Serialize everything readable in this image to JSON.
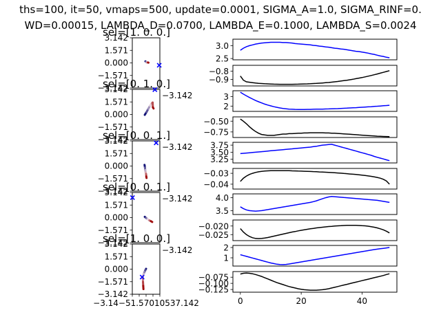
{
  "figure": {
    "title_line1": "ths=100, it=50, vmaps=500, update=0.0001, SIGMA_A=1.0, SIGMA_RINF=0.",
    "title_line2": "WD=0.00015, LAMBDA_D=0.0700, LAMBDA_E=0.1000, LAMBDA_S=0.0024"
  },
  "chart_data": {
    "scatter_panels": [
      {
        "title": "sel=[1. 0. 0.]",
        "offaxis_label": "",
        "cross": [
          3.0,
          -0.3
        ],
        "trail": [
          [
            -0.15,
            0.2
          ],
          [
            0.0,
            0.12
          ],
          [
            0.15,
            0.06
          ],
          [
            0.3,
            0.05
          ],
          [
            0.45,
            0.05
          ],
          [
            0.55,
            0.03
          ]
        ]
      },
      {
        "title": "sel=[0. 1. 0.]",
        "offaxis_label": "−3.142",
        "cross": [
          2.0,
          3.1
        ],
        "trail": [
          [
            -0.3,
            -0.05
          ],
          [
            0.1,
            0.3
          ],
          [
            0.5,
            0.7
          ],
          [
            0.9,
            1.1
          ],
          [
            1.3,
            1.4
          ],
          [
            1.5,
            1.5
          ],
          [
            1.55,
            0.9
          ],
          [
            1.7,
            0.75
          ]
        ]
      },
      {
        "title": "sel=[0. 0. 1.]",
        "offaxis_label": "−3.142",
        "cross": [
          2.3,
          2.9
        ],
        "trail": [
          [
            -0.35,
            0.15
          ],
          [
            -0.25,
            -0.2
          ],
          [
            -0.2,
            -0.5
          ],
          [
            -0.1,
            -0.8
          ],
          [
            0.0,
            -1.0
          ],
          [
            0.05,
            -1.3
          ],
          [
            0.1,
            -1.5
          ]
        ]
      },
      {
        "title": "sel=[0. 0. 1.]",
        "offaxis_label": "−3.142",
        "cross": [
          -3.1,
          2.5
        ],
        "trail": [
          [
            -0.3,
            0.1
          ],
          [
            0.0,
            -0.05
          ],
          [
            0.35,
            -0.2
          ],
          [
            0.75,
            -0.35
          ],
          [
            1.1,
            -0.45
          ],
          [
            1.4,
            -0.55
          ]
        ]
      },
      {
        "title": "sel=[1. 0. 0.]",
        "offaxis_label": "−3.142",
        "cross": [
          -0.9,
          -1.0
        ],
        "trail": [
          [
            0.0,
            0.05
          ],
          [
            -0.15,
            -0.1
          ],
          [
            -0.35,
            -0.35
          ],
          [
            -0.55,
            -0.6
          ],
          [
            -0.7,
            -0.85
          ],
          [
            -0.75,
            -1.05
          ],
          [
            -0.7,
            -1.6
          ],
          [
            -0.65,
            -2.1
          ],
          [
            -0.6,
            -2.5
          ]
        ]
      }
    ],
    "scatter_axes": {
      "xlim": [
        -3.142,
        3.142
      ],
      "ylim": [
        -3.142,
        3.142
      ],
      "yticks": [
        "3.142",
        "1.571",
        "0.000",
        "−1.571",
        "−3.142"
      ],
      "xticks_overlapped": "−3.14−51.57010537.142",
      "cross_color": "#0000ff"
    },
    "line_panels": [
      {
        "color": "#0000ff",
        "ylim": [
          2.45,
          3.25
        ],
        "ticks": [
          2.5,
          3.0
        ],
        "tick_labels": [
          "2.5",
          "3.0"
        ],
        "y": [
          2.82,
          2.9,
          2.96,
          3.0,
          3.03,
          3.06,
          3.08,
          3.1,
          3.11,
          3.12,
          3.13,
          3.13,
          3.13,
          3.13,
          3.12,
          3.12,
          3.11,
          3.1,
          3.08,
          3.07,
          3.06,
          3.05,
          3.04,
          3.03,
          3.01,
          3.0,
          2.98,
          2.97,
          2.95,
          2.94,
          2.92,
          2.9,
          2.89,
          2.87,
          2.86,
          2.84,
          2.82,
          2.8,
          2.78,
          2.77,
          2.75,
          2.73,
          2.71,
          2.68,
          2.66,
          2.63,
          2.6,
          2.58,
          2.55,
          2.53
        ]
      },
      {
        "color": "#000000",
        "ylim": [
          -0.98,
          -0.73
        ],
        "ticks": [
          -0.8,
          -0.9
        ],
        "tick_labels": [
          "−0.8",
          "−0.9"
        ],
        "y": [
          -0.86,
          -0.91,
          -0.93,
          -0.935,
          -0.94,
          -0.945,
          -0.948,
          -0.951,
          -0.953,
          -0.955,
          -0.957,
          -0.958,
          -0.959,
          -0.96,
          -0.96,
          -0.96,
          -0.96,
          -0.96,
          -0.959,
          -0.958,
          -0.957,
          -0.956,
          -0.955,
          -0.953,
          -0.951,
          -0.949,
          -0.947,
          -0.944,
          -0.941,
          -0.938,
          -0.934,
          -0.93,
          -0.926,
          -0.921,
          -0.916,
          -0.911,
          -0.905,
          -0.899,
          -0.892,
          -0.885,
          -0.878,
          -0.87,
          -0.862,
          -0.853,
          -0.844,
          -0.835,
          -0.825,
          -0.815,
          -0.805,
          -0.795
        ]
      },
      {
        "color": "#0000ff",
        "ylim": [
          1.45,
          3.6
        ],
        "ticks": [
          3,
          2
        ],
        "tick_labels": [
          "3",
          "2"
        ],
        "y": [
          3.45,
          3.25,
          3.07,
          2.9,
          2.74,
          2.58,
          2.45,
          2.33,
          2.21,
          2.11,
          2.02,
          1.94,
          1.87,
          1.81,
          1.76,
          1.72,
          1.69,
          1.67,
          1.66,
          1.65,
          1.65,
          1.65,
          1.66,
          1.66,
          1.67,
          1.68,
          1.68,
          1.69,
          1.7,
          1.71,
          1.72,
          1.73,
          1.74,
          1.76,
          1.77,
          1.79,
          1.81,
          1.82,
          1.84,
          1.86,
          1.88,
          1.9,
          1.92,
          1.94,
          1.97,
          1.99,
          2.01,
          2.04,
          2.06,
          2.09
        ]
      },
      {
        "color": "#000000",
        "ylim": [
          -0.88,
          -0.4
        ],
        "ticks": [
          -0.5,
          -0.75
        ],
        "tick_labels": [
          "−0.50",
          "−0.75"
        ],
        "y": [
          -0.45,
          -0.5,
          -0.56,
          -0.63,
          -0.69,
          -0.74,
          -0.78,
          -0.81,
          -0.82,
          -0.83,
          -0.83,
          -0.83,
          -0.82,
          -0.81,
          -0.8,
          -0.8,
          -0.79,
          -0.79,
          -0.785,
          -0.78,
          -0.78,
          -0.775,
          -0.775,
          -0.77,
          -0.77,
          -0.77,
          -0.77,
          -0.77,
          -0.775,
          -0.775,
          -0.78,
          -0.78,
          -0.785,
          -0.79,
          -0.795,
          -0.8,
          -0.805,
          -0.81,
          -0.815,
          -0.82,
          -0.825,
          -0.83,
          -0.835,
          -0.84,
          -0.845,
          -0.85,
          -0.853,
          -0.856,
          -0.858,
          -0.86
        ]
      },
      {
        "color": "#0000ff",
        "ylim": [
          3.12,
          3.85
        ],
        "ticks": [
          3.75,
          3.5,
          3.25
        ],
        "tick_labels": [
          "3.75",
          "3.50",
          "3.25"
        ],
        "y": [
          3.45,
          3.46,
          3.47,
          3.48,
          3.49,
          3.5,
          3.51,
          3.52,
          3.53,
          3.54,
          3.55,
          3.56,
          3.57,
          3.58,
          3.59,
          3.6,
          3.61,
          3.62,
          3.63,
          3.64,
          3.65,
          3.66,
          3.67,
          3.68,
          3.7,
          3.71,
          3.73,
          3.75,
          3.76,
          3.77,
          3.78,
          3.75,
          3.72,
          3.69,
          3.66,
          3.63,
          3.6,
          3.57,
          3.54,
          3.51,
          3.48,
          3.45,
          3.42,
          3.39,
          3.35,
          3.32,
          3.29,
          3.26,
          3.23,
          3.2
        ]
      },
      {
        "color": "#000000",
        "ylim": [
          -0.0445,
          -0.0255
        ],
        "ticks": [
          -0.03,
          -0.04
        ],
        "tick_labels": [
          "−0.03",
          "−0.04"
        ],
        "y": [
          -0.0375,
          -0.0345,
          -0.0325,
          -0.031,
          -0.03,
          -0.0292,
          -0.0286,
          -0.0282,
          -0.0279,
          -0.0277,
          -0.0276,
          -0.0275,
          -0.0275,
          -0.0275,
          -0.0275,
          -0.0276,
          -0.0276,
          -0.0277,
          -0.0278,
          -0.0279,
          -0.028,
          -0.0281,
          -0.0282,
          -0.0283,
          -0.0284,
          -0.0285,
          -0.0287,
          -0.0288,
          -0.029,
          -0.0291,
          -0.0293,
          -0.0295,
          -0.0297,
          -0.0299,
          -0.0301,
          -0.0303,
          -0.0306,
          -0.0308,
          -0.0311,
          -0.0314,
          -0.0317,
          -0.032,
          -0.0324,
          -0.0328,
          -0.0333,
          -0.0338,
          -0.0345,
          -0.0355,
          -0.037,
          -0.04
        ]
      },
      {
        "color": "#0000ff",
        "ylim": [
          3.35,
          4.15
        ],
        "ticks": [
          4.0,
          3.5
        ],
        "tick_labels": [
          "4.0",
          "3.5"
        ],
        "y": [
          3.65,
          3.58,
          3.53,
          3.5,
          3.49,
          3.48,
          3.49,
          3.5,
          3.52,
          3.54,
          3.56,
          3.58,
          3.6,
          3.62,
          3.64,
          3.66,
          3.68,
          3.7,
          3.72,
          3.74,
          3.76,
          3.78,
          3.8,
          3.82,
          3.85,
          3.88,
          3.92,
          3.96,
          4.0,
          4.03,
          4.05,
          4.04,
          4.03,
          4.02,
          4.01,
          4.0,
          3.99,
          3.98,
          3.97,
          3.96,
          3.95,
          3.94,
          3.93,
          3.92,
          3.91,
          3.9,
          3.88,
          3.86,
          3.84,
          3.82
        ]
      },
      {
        "color": "#000000",
        "ylim": [
          -0.0285,
          -0.0165
        ],
        "ticks": [
          -0.02,
          -0.025
        ],
        "tick_labels": [
          "−0.020",
          "−0.025"
        ],
        "y": [
          -0.0215,
          -0.0235,
          -0.025,
          -0.0261,
          -0.0268,
          -0.0272,
          -0.0273,
          -0.0272,
          -0.027,
          -0.0267,
          -0.0263,
          -0.0259,
          -0.0255,
          -0.0251,
          -0.0247,
          -0.0243,
          -0.0239,
          -0.0235,
          -0.0232,
          -0.0228,
          -0.0225,
          -0.0222,
          -0.0219,
          -0.0216,
          -0.0214,
          -0.0211,
          -0.0209,
          -0.0207,
          -0.0205,
          -0.0203,
          -0.0202,
          -0.02,
          -0.0199,
          -0.0198,
          -0.0197,
          -0.0196,
          -0.0196,
          -0.0196,
          -0.0196,
          -0.0197,
          -0.0198,
          -0.0199,
          -0.0201,
          -0.0204,
          -0.0207,
          -0.0211,
          -0.0216,
          -0.0222,
          -0.023,
          -0.024
        ]
      },
      {
        "color": "#0000ff",
        "ylim": [
          0.2,
          2.2
        ],
        "ticks": [
          2,
          1
        ],
        "tick_labels": [
          "2",
          "1"
        ],
        "y": [
          1.3,
          1.22,
          1.14,
          1.06,
          0.98,
          0.9,
          0.82,
          0.74,
          0.66,
          0.58,
          0.5,
          0.44,
          0.38,
          0.35,
          0.34,
          0.36,
          0.4,
          0.45,
          0.5,
          0.55,
          0.6,
          0.65,
          0.7,
          0.75,
          0.8,
          0.85,
          0.9,
          0.95,
          1.0,
          1.05,
          1.1,
          1.15,
          1.2,
          1.25,
          1.3,
          1.35,
          1.4,
          1.45,
          1.5,
          1.55,
          1.6,
          1.65,
          1.7,
          1.75,
          1.8,
          1.84,
          1.88,
          1.92,
          1.96,
          2.0
        ]
      },
      {
        "color": "#000000",
        "ylim": [
          -0.136,
          -0.052
        ],
        "ticks": [
          -0.075,
          -0.1,
          -0.125
        ],
        "tick_labels": [
          "−0.075",
          "−0.100",
          "−0.125"
        ],
        "y": [
          -0.062,
          -0.059,
          -0.058,
          -0.059,
          -0.061,
          -0.064,
          -0.068,
          -0.072,
          -0.077,
          -0.082,
          -0.087,
          -0.092,
          -0.097,
          -0.101,
          -0.105,
          -0.109,
          -0.113,
          -0.116,
          -0.119,
          -0.122,
          -0.124,
          -0.126,
          -0.127,
          -0.128,
          -0.128,
          -0.128,
          -0.127,
          -0.126,
          -0.124,
          -0.122,
          -0.119,
          -0.116,
          -0.113,
          -0.11,
          -0.107,
          -0.104,
          -0.101,
          -0.098,
          -0.095,
          -0.092,
          -0.089,
          -0.086,
          -0.083,
          -0.08,
          -0.077,
          -0.074,
          -0.071,
          -0.068,
          -0.064,
          -0.061
        ]
      }
    ],
    "line_xlim": [
      -2.45,
      51.45
    ],
    "line_xticks": [
      0,
      20,
      40
    ],
    "line_xtick_labels": [
      "0",
      "20",
      "40"
    ]
  }
}
